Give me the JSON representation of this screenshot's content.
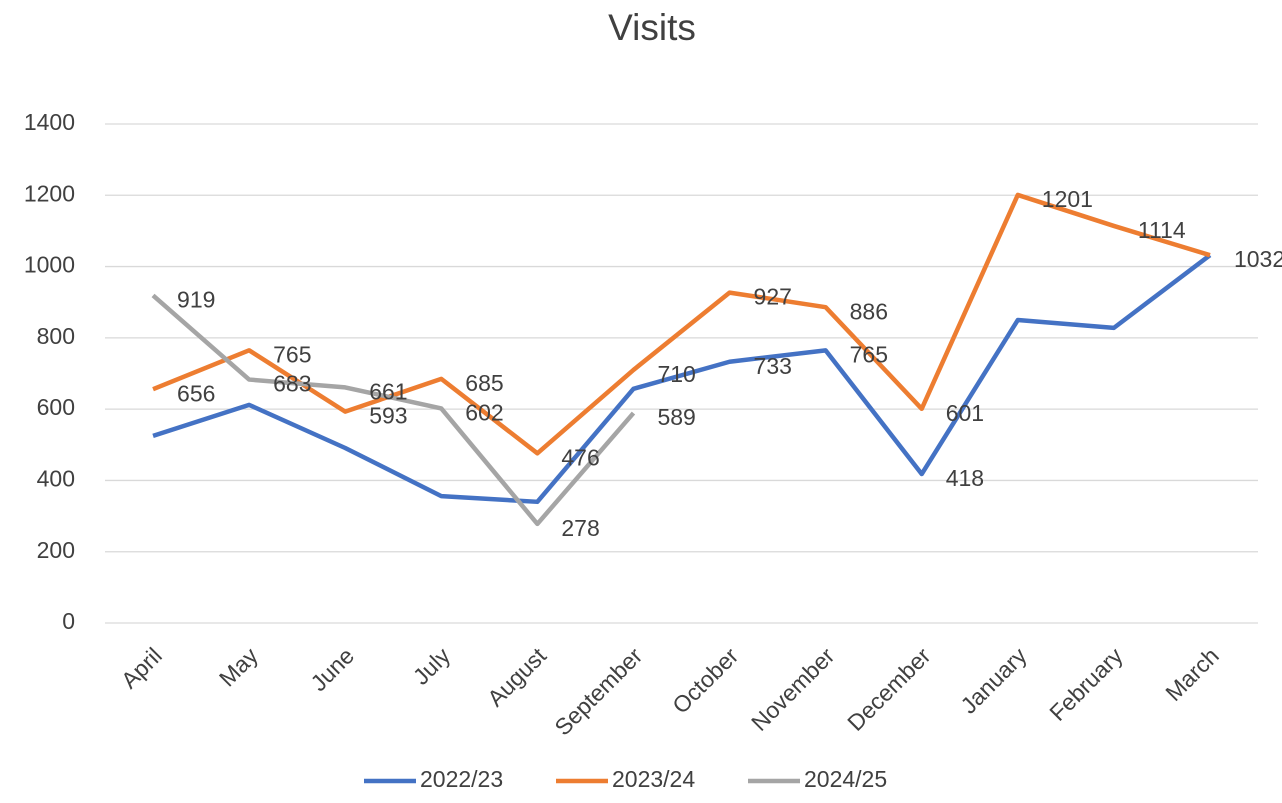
{
  "chart_data": {
    "type": "line",
    "title": "Visits",
    "categories": [
      "April",
      "May",
      "June",
      "July",
      "August",
      "September",
      "October",
      "November",
      "December",
      "January",
      "February",
      "March"
    ],
    "series": [
      {
        "name": "2022/23",
        "color": "#4472c4",
        "values": [
          525,
          612,
          491,
          356,
          340,
          657,
          733,
          765,
          418,
          850,
          828,
          1032
        ],
        "value_labels": [
          null,
          null,
          null,
          null,
          null,
          null,
          "733",
          "765",
          "418",
          null,
          null,
          null
        ]
      },
      {
        "name": "2023/24",
        "color": "#ed7d31",
        "values": [
          656,
          765,
          593,
          685,
          476,
          710,
          927,
          886,
          601,
          1201,
          1114,
          1032
        ],
        "value_labels": [
          "656",
          "765",
          "593",
          "685",
          "476",
          "710",
          "927",
          "886",
          "601",
          "1201",
          "1114",
          "1032"
        ]
      },
      {
        "name": "2024/25",
        "color": "#a5a5a5",
        "values": [
          919,
          683,
          661,
          602,
          278,
          589,
          null,
          null,
          null,
          null,
          null,
          null
        ],
        "value_labels": [
          "919",
          "683",
          "661",
          "602",
          "278",
          "589",
          null,
          null,
          null,
          null,
          null,
          null
        ]
      }
    ],
    "ylim": [
      0,
      1400
    ],
    "yticks": [
      0,
      200,
      400,
      600,
      800,
      1000,
      1200,
      1400
    ],
    "grid": true,
    "legend": "bottom"
  }
}
